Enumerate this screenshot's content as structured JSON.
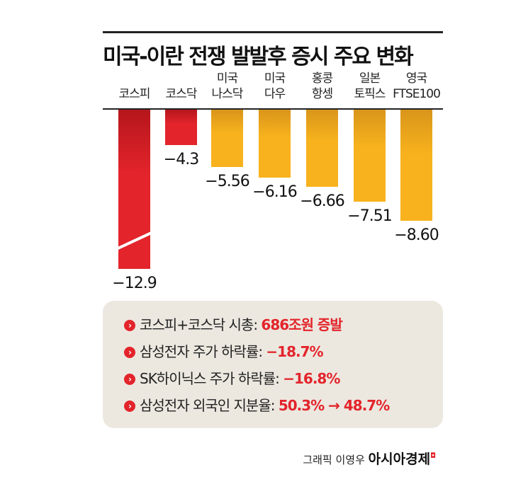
{
  "chart_data": {
    "type": "bar",
    "title": "미국-이란 전쟁 발발후 증시 주요 변화",
    "categories": [
      [
        "코스피"
      ],
      [
        "코스닥"
      ],
      [
        "미국",
        "나스닥"
      ],
      [
        "미국",
        "다우"
      ],
      [
        "홍콩",
        "항셍"
      ],
      [
        "일본",
        "토픽스"
      ],
      [
        "영국",
        "FTSE100"
      ]
    ],
    "values": [
      -12.9,
      -4.3,
      -5.56,
      -6.16,
      -6.66,
      -7.51,
      -8.6
    ],
    "labels": [
      "−12.9",
      "−4.3",
      "−5.56",
      "−6.16",
      "−6.66",
      "−7.51",
      "−8.60"
    ],
    "colors": [
      "#e3242b",
      "#e3242b",
      "#f7b21d",
      "#f7b21d",
      "#f7b21d",
      "#f7b21d",
      "#f7b21d"
    ],
    "broken_axis_bar": "코스피"
  },
  "notes": [
    {
      "text": "코스피+코스닥 시총: ",
      "highlight": "686조원 증발"
    },
    {
      "text": "삼성전자 주가 하락률: ",
      "highlight": "−18.7%"
    },
    {
      "text": "SK하이닉스 주가 하락률: ",
      "highlight": "−16.8%"
    },
    {
      "text": "삼성전자 외국인 지분율: ",
      "highlight": "50.3% → 48.7%"
    }
  ],
  "credit": {
    "text": "그래픽 이영우",
    "brand": "아시아경제"
  }
}
